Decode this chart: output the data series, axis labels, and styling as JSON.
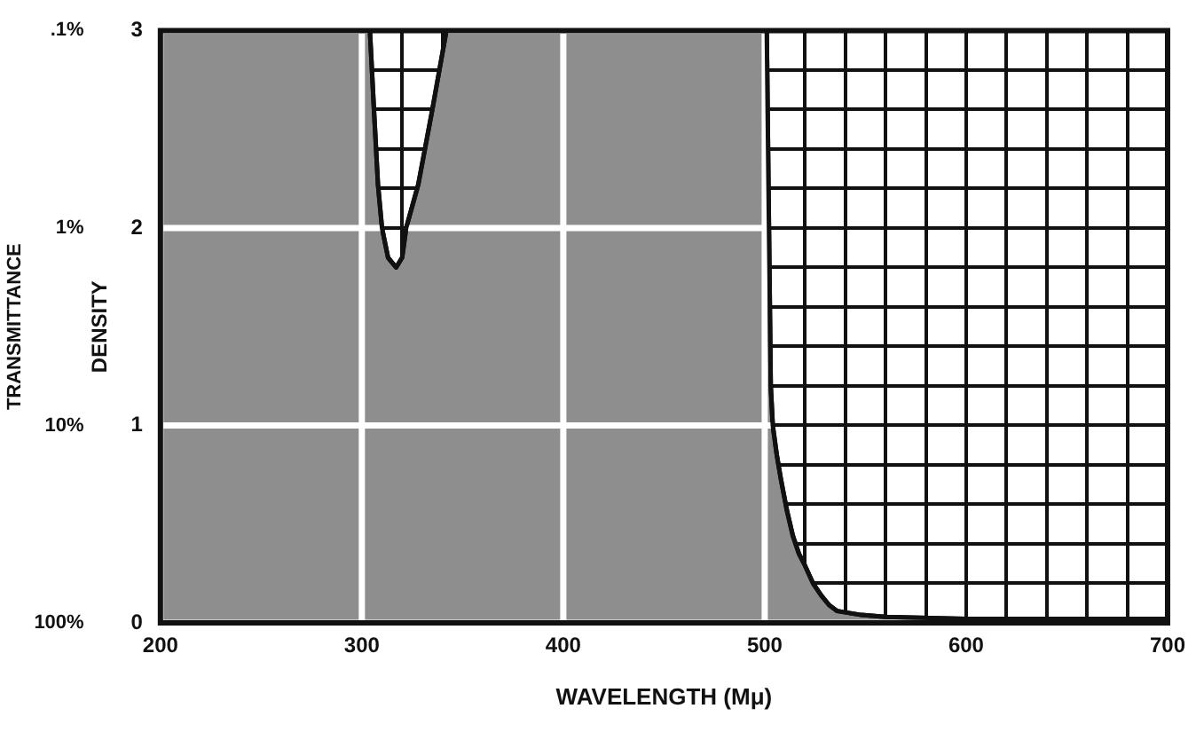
{
  "chart_data": {
    "type": "area",
    "xlabel": "WAVELENGTH (Mμ)",
    "ylabel": "DENSITY",
    "y2label": "TRANSMITTANCE",
    "color": "#8e8e8e",
    "x": [
      200,
      304,
      306,
      308,
      310,
      313,
      317,
      320,
      322,
      328,
      335,
      342,
      501,
      503,
      504,
      506,
      508,
      511,
      514,
      517,
      520,
      524,
      528,
      532,
      536,
      542,
      548,
      560,
      600,
      700
    ],
    "values": [
      3,
      3,
      2.6,
      2.22,
      2.0,
      1.85,
      1.8,
      1.85,
      2.0,
      2.22,
      2.6,
      3,
      3,
      1.2,
      1.0,
      0.85,
      0.73,
      0.57,
      0.44,
      0.35,
      0.29,
      0.2,
      0.14,
      0.09,
      0.06,
      0.05,
      0.04,
      0.03,
      0.02,
      0.02
    ],
    "xlim": [
      200,
      700
    ],
    "xticks": [
      200,
      300,
      {
        "value": 320,
        "label": null
      },
      {
        "value": 340,
        "label": null
      },
      400,
      500,
      {
        "value": 520,
        "label": null
      },
      {
        "value": 540,
        "label": null
      },
      {
        "value": 560,
        "label": null
      },
      {
        "value": 580,
        "label": null
      },
      600,
      {
        "value": 620,
        "label": null
      },
      {
        "value": 640,
        "label": null
      },
      {
        "value": 660,
        "label": null
      },
      {
        "value": 680,
        "label": null
      },
      700
    ],
    "ylim": [
      0,
      3
    ],
    "yticks": [
      0,
      {
        "value": 0.2,
        "label": null
      },
      {
        "value": 0.4,
        "label": null
      },
      {
        "value": 0.6,
        "label": null
      },
      {
        "value": 0.8,
        "label": null
      },
      1,
      {
        "value": 1.2,
        "label": null
      },
      {
        "value": 1.4,
        "label": null
      },
      {
        "value": 1.6,
        "label": null
      },
      {
        "value": 1.8,
        "label": null
      },
      2,
      {
        "value": 2.2,
        "label": null
      },
      {
        "value": 2.4,
        "label": null
      },
      {
        "value": 2.6,
        "label": null
      },
      {
        "value": 2.8,
        "label": null
      },
      3
    ],
    "y2lim": [
      100,
      0.1
    ],
    "y2ticks": [
      {
        "value": 100,
        "label": "100%"
      },
      {
        "value": 10,
        "label": "10%"
      },
      {
        "value": 1,
        "label": "1%"
      },
      {
        "value": 0.1,
        "label": ".1%"
      }
    ],
    "log": "y2",
    "grid": true
  }
}
